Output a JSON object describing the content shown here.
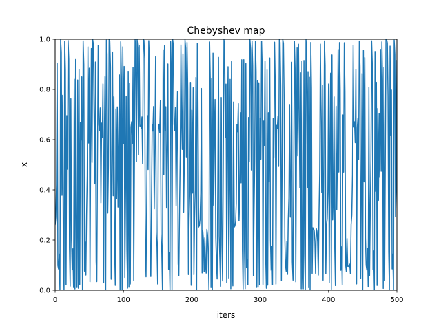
{
  "chart_data": {
    "type": "line",
    "title": "Chebyshev map",
    "xlabel": "iters",
    "ylabel": "x",
    "xlim": [
      0,
      500
    ],
    "ylim": [
      0.0,
      1.0
    ],
    "xticks": [
      0,
      100,
      200,
      300,
      400,
      500
    ],
    "xtick_labels": [
      "0",
      "100",
      "200",
      "300",
      "400",
      "500"
    ],
    "yticks": [
      0.0,
      0.2,
      0.4,
      0.6,
      0.8,
      1.0
    ],
    "ytick_labels": [
      "0.0",
      "0.2",
      "0.4",
      "0.6",
      "0.8",
      "1.0"
    ],
    "grid": false,
    "series": [
      {
        "color": "#1f77b4",
        "map": "chebyshev",
        "degree": 4,
        "x0": 0.26,
        "iterations": 500
      }
    ]
  }
}
